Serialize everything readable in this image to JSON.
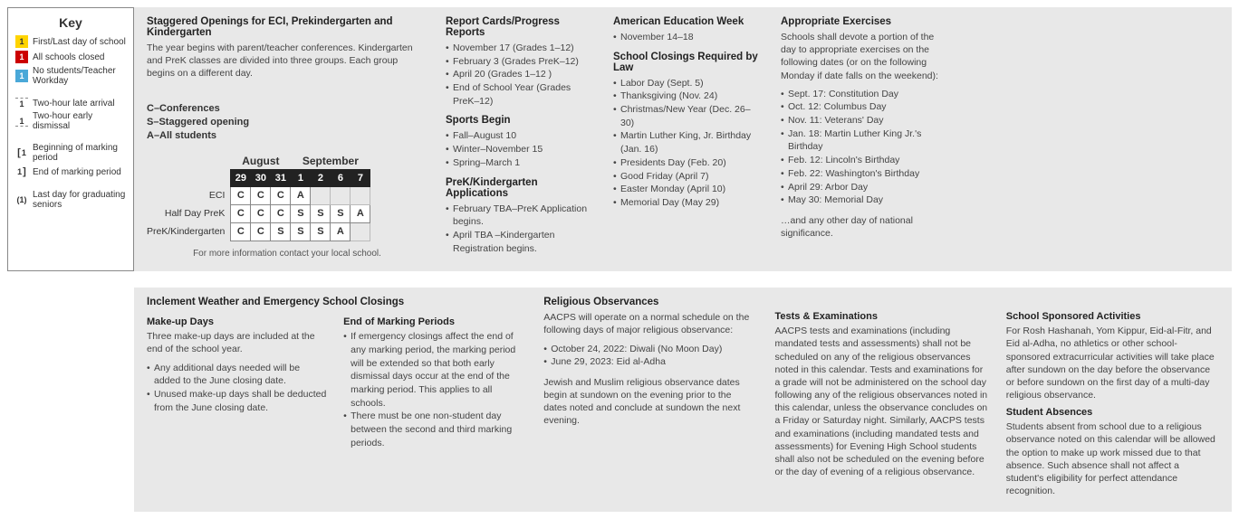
{
  "key": {
    "title": "Key",
    "items": [
      {
        "swatch": "ks-yellow",
        "num": "1",
        "label": "First/Last day of school"
      },
      {
        "swatch": "ks-red",
        "num": "1",
        "label": "All schools closed"
      },
      {
        "swatch": "ks-blue",
        "num": "1",
        "label": "No students/Teacher Workday"
      },
      {
        "swatch": "ks-dash-top",
        "num": "1",
        "label": "Two-hour late arrival"
      },
      {
        "swatch": "ks-dash-bot",
        "num": "1",
        "label": "Two-hour early dismissal"
      },
      {
        "swatch": "ks-bracket-l",
        "num": "1",
        "label": "Beginning of marking period"
      },
      {
        "swatch": "ks-bracket-r",
        "num": "1",
        "label": "End of marking period"
      },
      {
        "swatch": "ks-paren",
        "num": "1",
        "label": "Last day for graduating seniors"
      }
    ]
  },
  "staggered": {
    "title": "Staggered Openings for ECI, Prekindergarten and Kindergarten",
    "desc": "The year begins with parent/teacher conferences. Kindergarten and PreK classes are divided into three groups. Each group begins on a different day.",
    "legend": [
      "C–Conferences",
      "S–Staggered opening",
      "A–All students"
    ],
    "months": [
      "August",
      "September"
    ],
    "days": [
      "29",
      "30",
      "31",
      "1",
      "2",
      "6",
      "7"
    ],
    "rows": [
      {
        "label": "ECI",
        "cells": [
          "C",
          "C",
          "C",
          "A",
          "",
          "",
          ""
        ]
      },
      {
        "label": "Half Day PreK",
        "cells": [
          "C",
          "C",
          "C",
          "S",
          "S",
          "S",
          "A"
        ]
      },
      {
        "label": "PreK/Kindergarten",
        "cells": [
          "C",
          "C",
          "S",
          "S",
          "S",
          "A",
          ""
        ]
      }
    ],
    "footnote": "For more information contact your local school."
  },
  "reportCards": {
    "title": "Report Cards/Progress Reports",
    "items": [
      "November 17 (Grades 1–12)",
      "February 3 (Grades PreK–12)",
      "April 20 (Grades 1–12 )",
      "End of School Year (Grades PreK–12)"
    ]
  },
  "sports": {
    "title": "Sports Begin",
    "items": [
      "Fall–August 10",
      "Winter–November 15",
      "Spring–March 1"
    ]
  },
  "prekApps": {
    "title": "PreK/Kindergarten Applications",
    "items": [
      "February TBA–PreK Application begins.",
      "April TBA –Kindergarten Registration begins."
    ]
  },
  "amEdWeek": {
    "title": "American Education Week",
    "items": [
      "November 14–18"
    ]
  },
  "closings": {
    "title": "School Closings Required by Law",
    "items": [
      "Labor Day (Sept. 5)",
      "Thanksgiving (Nov. 24)",
      "Christmas/New Year (Dec. 26–30)",
      "Martin Luther King, Jr. Birthday (Jan. 16)",
      "Presidents Day (Feb. 20)",
      "Good Friday (April 7)",
      "Easter Monday (April 10)",
      "Memorial Day (May 29)"
    ]
  },
  "exercises": {
    "title": "Appropriate Exercises",
    "desc": "Schools shall devote a portion of the day to appropriate exercises on the following dates (or on the following Monday if date falls on the weekend):",
    "items": [
      "Sept. 17: Constitution Day",
      "Oct. 12: Columbus Day",
      "Nov. 11: Veterans' Day",
      "Jan. 18: Martin Luther King Jr.'s Birthday",
      "Feb. 12: Lincoln's Birthday",
      "Feb. 22: Washington's Birthday",
      "April 29: Arbor Day",
      "May 30: Memorial Day"
    ],
    "tail": "…and any other day of national significance."
  },
  "inclement": {
    "title": "Inclement Weather and Emergency School Closings",
    "makeup": {
      "head": "Make-up Days",
      "lead": "Three make-up days are included at the end of the school year.",
      "items": [
        "Any additional days needed will be added to the June closing date.",
        "Unused make-up days shall be deducted from the June closing date."
      ]
    },
    "endMarking": {
      "head": "End of Marking Periods",
      "items": [
        "If emergency closings affect the end of any marking period, the marking period will be extended so that both early dismissal days occur at the end of the marking period. This applies to all schools.",
        "There must be one non-student day between the second and third marking periods."
      ]
    }
  },
  "religious": {
    "title": "Religious Observances",
    "lead": "AACPS will operate on a normal schedule on the following days of major religious observance:",
    "items": [
      "October 24, 2022: Diwali (No Moon Day)",
      "June 29, 2023: Eid al-Adha"
    ],
    "para": "Jewish and Muslim religious observance dates begin at sundown on the evening prior to the dates noted and conclude at sundown the next evening.",
    "tests": {
      "head": "Tests & Examinations",
      "body": "AACPS tests and examinations (including mandated tests and assessments) shall not be scheduled on any of the religious observances noted in this calendar. Tests and examinations for a grade will not be administered on the school day following any of the religious observances noted in this calendar, unless the observance concludes on a Friday or Saturday night. Similarly, AACPS tests and examinations (including mandated tests and assessments) for Evening High School students shall also not be scheduled on the evening before or the day of evening of a religious observance."
    },
    "sponsored": {
      "head": "School Sponsored Activities",
      "body": "For Rosh Hashanah, Yom Kippur, Eid-al-Fitr, and Eid al-Adha, no athletics or other school-sponsored extracurricular activities will take place after sundown on the day before the observance or before sundown on the first day of a multi-day religious observance."
    },
    "absences": {
      "head": "Student Absences",
      "body": "Students absent from school due to a religious observance noted on this calendar will be allowed the option to make up work missed due to that absence. Such absence shall not affect a student's eligibility for perfect attendance recognition."
    }
  }
}
